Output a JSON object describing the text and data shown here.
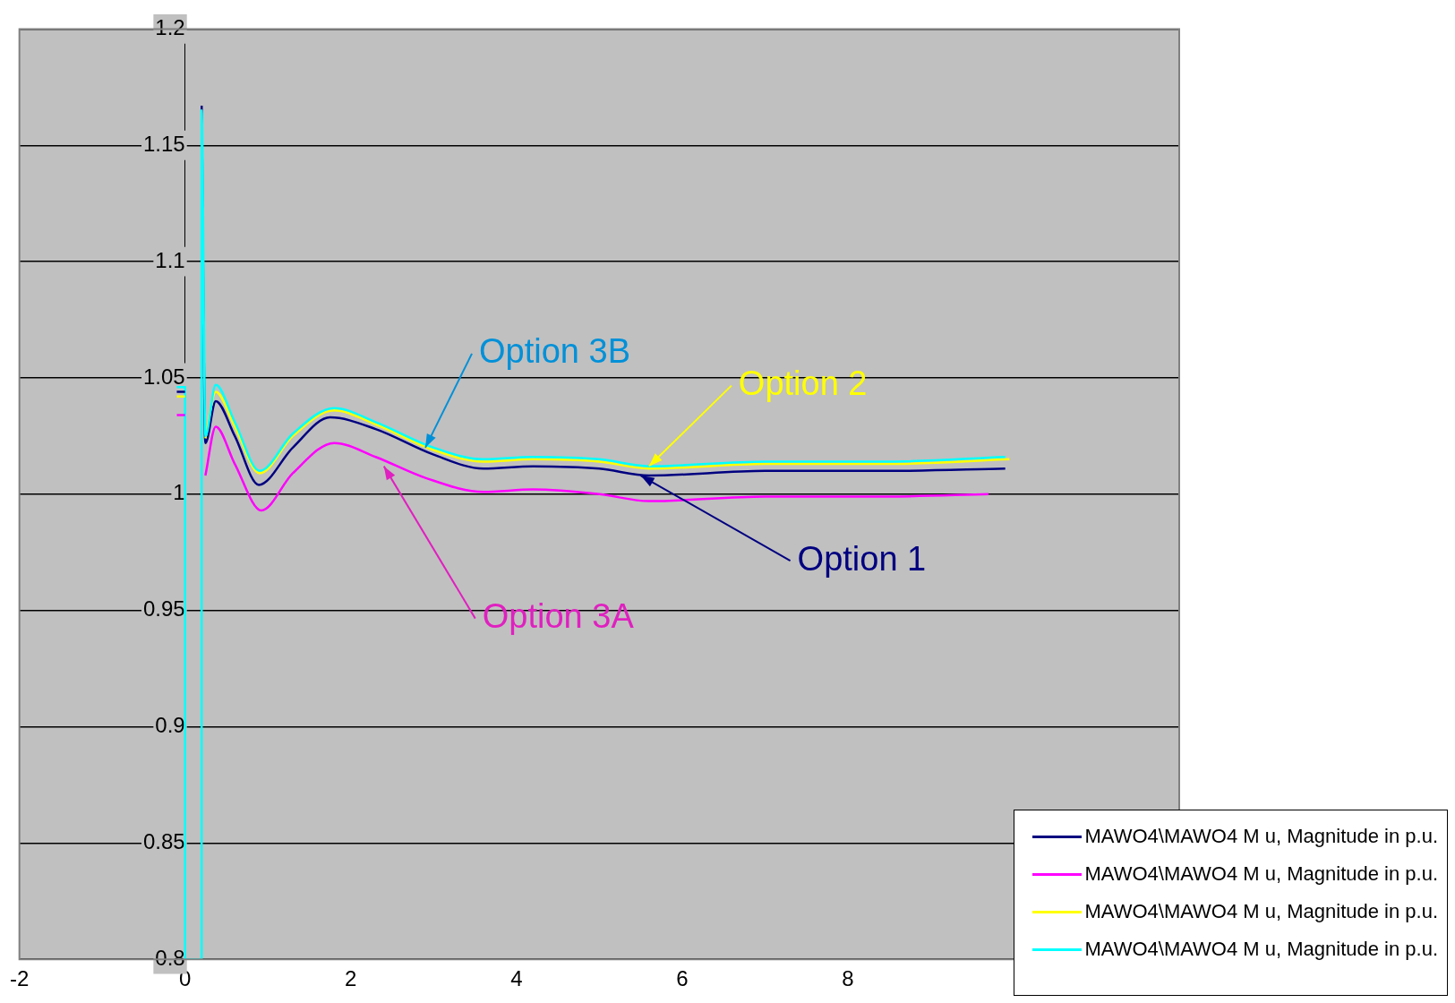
{
  "chart_data": {
    "type": "line",
    "xlim": [
      -2,
      12
    ],
    "xticks": [
      -2,
      0,
      2,
      4,
      6,
      8
    ],
    "ylim": [
      0.8,
      1.2
    ],
    "yticks": [
      0.8,
      0.85,
      0.9,
      0.95,
      1,
      1.05,
      1.1,
      1.15,
      1.2
    ],
    "grid": "y",
    "legend": "bottom right",
    "marker": "none",
    "line_style": "solid",
    "series": [
      {
        "name": "MAWO4\\MAWO4 M u, Magnitude in p.u.",
        "color": "#000080",
        "x": [
          0.2,
          0.245,
          0.37,
          0.6,
          0.89,
          1.3,
          1.75,
          2.3,
          3,
          3.6,
          4.2,
          5,
          5.6,
          7,
          8.5,
          9.9
        ],
        "values": [
          1.167,
          1.022,
          1.04,
          1.025,
          1.004,
          1.02,
          1.033,
          1.028,
          1.017,
          1.011,
          1.012,
          1.011,
          1.008,
          1.01,
          1.01,
          1.011
        ]
      },
      {
        "name": "MAWO4\\MAWO4 M u, Magnitude in p.u.",
        "color": "#ff00ff",
        "x": [
          0.245,
          0.37,
          0.6,
          0.92,
          1.3,
          1.8,
          2.3,
          2.9,
          3.6,
          4.2,
          5,
          5.6,
          7,
          8.5,
          9.7
        ],
        "values": [
          1.008,
          1.029,
          1.013,
          0.993,
          1.009,
          1.022,
          1.016,
          1.007,
          1.001,
          1.002,
          1,
          0.997,
          0.999,
          0.999,
          1
        ]
      },
      {
        "name": "MAWO4\\MAWO4 M u, Magnitude in p.u.",
        "color": "#ffff00",
        "x": [
          0.245,
          0.37,
          0.6,
          0.9,
          1.3,
          1.8,
          2.3,
          3,
          3.6,
          4.2,
          5,
          5.6,
          7,
          8.5,
          9.95
        ],
        "values": [
          1.024,
          1.044,
          1.029,
          1.009,
          1.025,
          1.036,
          1.03,
          1.019,
          1.014,
          1.015,
          1.014,
          1.011,
          1.013,
          1.013,
          1.015
        ]
      },
      {
        "name": "MAWO4\\MAWO4 M u, Magnitude in p.u.",
        "color": "#00ffff",
        "x": [
          -0.1,
          0,
          0,
          0.2,
          0.2,
          0.245,
          0.37,
          0.6,
          0.9,
          1.3,
          1.8,
          2.3,
          3,
          3.6,
          4.2,
          5,
          5.6,
          7,
          8.5,
          9.9
        ],
        "values": [
          1.046,
          1.046,
          0.8,
          0.8,
          1.165,
          1.025,
          1.047,
          1.031,
          1.01,
          1.026,
          1.037,
          1.031,
          1.02,
          1.015,
          1.016,
          1.015,
          1.012,
          1.014,
          1.014,
          1.016
        ]
      },
      {
        "color": "#000080",
        "x": [
          -0.1,
          0
        ],
        "values": [
          1.044,
          1.044
        ]
      },
      {
        "color": "#ff00ff",
        "x": [
          -0.1,
          0
        ],
        "values": [
          1.034,
          1.034
        ]
      },
      {
        "color": "#ffff00",
        "x": [
          -0.1,
          0
        ],
        "values": [
          1.042,
          1.042
        ]
      }
    ],
    "annotations": [
      {
        "text": "Option 3B",
        "x": 2.9,
        "y": 1.02
      },
      {
        "text": "Option 2",
        "x": 5.6,
        "y": 1.012
      },
      {
        "text": "Option 1",
        "x": 5.5,
        "y": 1.008
      },
      {
        "text": "Option 3A",
        "x": 2.4,
        "y": 1.012
      }
    ]
  }
}
